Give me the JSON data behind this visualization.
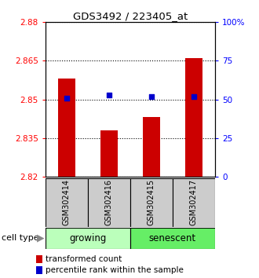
{
  "title": "GDS3492 / 223405_at",
  "samples": [
    "GSM302414",
    "GSM302416",
    "GSM302415",
    "GSM302417"
  ],
  "bar_values": [
    2.858,
    2.838,
    2.843,
    2.866
  ],
  "percentile_values": [
    51,
    53,
    52,
    52
  ],
  "ylim_left": [
    2.82,
    2.88
  ],
  "ylim_right": [
    0,
    100
  ],
  "yticks_left": [
    2.82,
    2.835,
    2.85,
    2.865,
    2.88
  ],
  "yticks_right": [
    0,
    25,
    50,
    75,
    100
  ],
  "ytick_labels_left": [
    "2.82",
    "2.835",
    "2.85",
    "2.865",
    "2.88"
  ],
  "ytick_labels_right": [
    "0",
    "25",
    "50",
    "75",
    "100%"
  ],
  "bar_color": "#cc0000",
  "dot_color": "#0000cc",
  "sample_box_color": "#cccccc",
  "growing_color": "#bbffbb",
  "senescent_color": "#66ee66",
  "legend_bar_label": "transformed count",
  "legend_dot_label": "percentile rank within the sample",
  "cell_type_label": "cell type"
}
